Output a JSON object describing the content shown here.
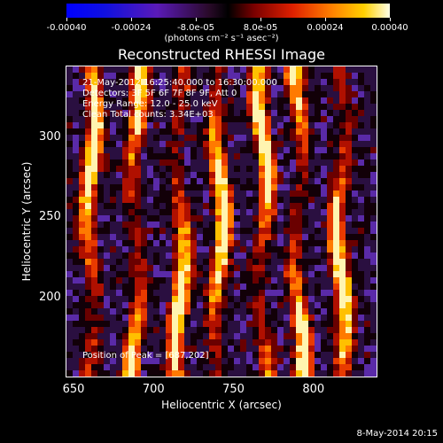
{
  "colorbar": {
    "tick_labels": [
      "-0.00040",
      "-0.00024",
      "-8.0e-05",
      "8.0e-05",
      "0.00024",
      "0.00040"
    ],
    "unit_label": "(photons cm⁻² s⁻¹ asec⁻²)",
    "min": -0.0004,
    "max": 0.0004
  },
  "title": "Reconstructed RHESSI Image",
  "info_lines": [
    "21-May-2012 16:25:40.000 to 16:30:00.000",
    "Detectors: 3F 5F 6F 7F 8F 9F, Att 0",
    "Energy Range: 12.0 - 25.0 keV",
    "Clean    Total counts: 3.34E+03"
  ],
  "peak_text": "Position of Peak = [687,202]",
  "x_axis": {
    "label": "Heliocentric X (arcsec)",
    "ticks": [
      "650",
      "700",
      "750",
      "800"
    ],
    "range": [
      645,
      840
    ]
  },
  "y_axis": {
    "label": "Heliocentric Y (arcsec)",
    "ticks": [
      "300",
      "250",
      "200"
    ],
    "range": [
      150,
      345
    ]
  },
  "footer": "8-May-2014 20:15",
  "colors": {
    "background": "#000000",
    "text": "#ffffff"
  }
}
